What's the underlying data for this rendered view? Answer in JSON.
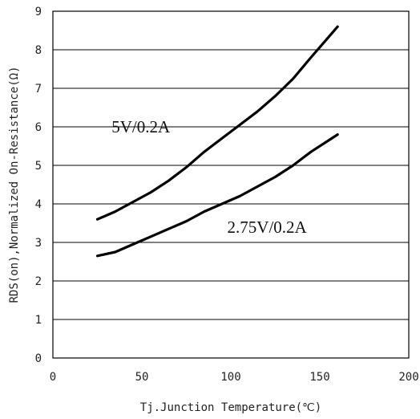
{
  "chart_data": {
    "type": "line",
    "xlabel": "Tj.Junction Temperature(℃)",
    "ylabel": "RDS(on),Normalized On-Resistance(Ω)",
    "xlim": [
      0,
      200
    ],
    "ylim": [
      0,
      9
    ],
    "xticks": [
      "0",
      "50",
      "100",
      "150",
      "200"
    ],
    "yticks": [
      "0",
      "1",
      "2",
      "3",
      "4",
      "5",
      "6",
      "7",
      "8",
      "9"
    ],
    "grid": "horizontal",
    "series": [
      {
        "name": "5V/0.2A",
        "x": [
          25,
          35,
          45,
          55,
          65,
          75,
          85,
          95,
          105,
          115,
          125,
          135,
          145,
          160
        ],
        "y": [
          3.6,
          3.8,
          4.05,
          4.3,
          4.6,
          4.95,
          5.35,
          5.7,
          6.05,
          6.4,
          6.8,
          7.25,
          7.8,
          8.6
        ]
      },
      {
        "name": "2.75V/0.2A",
        "x": [
          25,
          35,
          45,
          55,
          65,
          75,
          85,
          95,
          105,
          115,
          125,
          135,
          145,
          160
        ],
        "y": [
          2.65,
          2.75,
          2.95,
          3.15,
          3.35,
          3.55,
          3.8,
          4.0,
          4.2,
          4.45,
          4.7,
          5.0,
          5.35,
          5.8
        ]
      }
    ]
  }
}
